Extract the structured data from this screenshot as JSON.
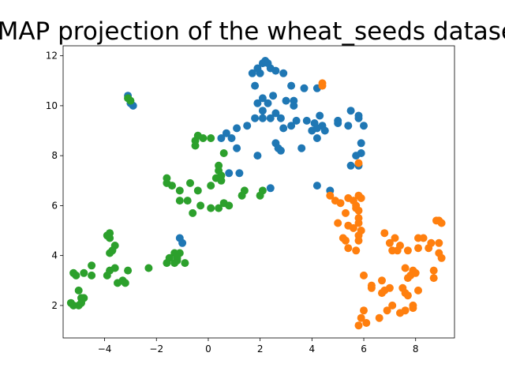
{
  "chart_data": {
    "type": "scatter",
    "title": "UMAP projection of the wheat_seeds dataset",
    "xlabel": "",
    "ylabel": "",
    "xlim": [
      -5.6,
      9.5
    ],
    "ylim": [
      0.7,
      12.4
    ],
    "xticks": [
      -4,
      -2,
      0,
      2,
      4,
      6,
      8
    ],
    "yticks": [
      2,
      4,
      6,
      8,
      10,
      12
    ],
    "grid": false,
    "legend": "none",
    "series": [
      {
        "color": "#1f77b4",
        "points": [
          [
            2.1,
            11.7
          ],
          [
            2.2,
            11.8
          ],
          [
            2.3,
            11.7
          ],
          [
            2.4,
            11.5
          ],
          [
            1.9,
            11.5
          ],
          [
            2.6,
            11.4
          ],
          [
            2.0,
            11.3
          ],
          [
            1.7,
            11.3
          ],
          [
            2.9,
            11.3
          ],
          [
            1.8,
            10.8
          ],
          [
            3.2,
            10.8
          ],
          [
            3.7,
            10.7
          ],
          [
            4.2,
            10.7
          ],
          [
            2.5,
            10.4
          ],
          [
            2.1,
            10.3
          ],
          [
            3.0,
            10.2
          ],
          [
            3.3,
            10.2
          ],
          [
            1.9,
            10.1
          ],
          [
            2.3,
            10.1
          ],
          [
            3.3,
            10.0
          ],
          [
            2.1,
            9.8
          ],
          [
            2.6,
            9.7
          ],
          [
            5.5,
            9.8
          ],
          [
            4.3,
            9.6
          ],
          [
            1.8,
            9.5
          ],
          [
            2.1,
            9.5
          ],
          [
            2.4,
            9.5
          ],
          [
            2.8,
            9.5
          ],
          [
            3.4,
            9.4
          ],
          [
            3.8,
            9.4
          ],
          [
            5.0,
            9.4
          ],
          [
            5.8,
            9.5
          ],
          [
            5.8,
            9.6
          ],
          [
            4.1,
            9.3
          ],
          [
            4.4,
            9.2
          ],
          [
            5.0,
            9.3
          ],
          [
            5.4,
            9.2
          ],
          [
            3.2,
            9.2
          ],
          [
            1.5,
            9.2
          ],
          [
            2.9,
            9.1
          ],
          [
            1.1,
            9.1
          ],
          [
            4.2,
            9.1
          ],
          [
            4.0,
            9.0
          ],
          [
            6.0,
            9.2
          ],
          [
            4.5,
            9.0
          ],
          [
            0.7,
            8.9
          ],
          [
            0.5,
            8.7
          ],
          [
            0.9,
            8.7
          ],
          [
            4.2,
            8.7
          ],
          [
            5.9,
            8.5
          ],
          [
            2.6,
            8.5
          ],
          [
            2.7,
            8.3
          ],
          [
            3.6,
            8.3
          ],
          [
            1.1,
            8.3
          ],
          [
            2.8,
            8.2
          ],
          [
            5.9,
            8.1
          ],
          [
            5.7,
            8.0
          ],
          [
            1.9,
            8.0
          ],
          [
            5.5,
            7.6
          ],
          [
            5.8,
            7.6
          ],
          [
            0.8,
            7.3
          ],
          [
            1.2,
            7.3
          ],
          [
            4.2,
            6.8
          ],
          [
            2.4,
            6.7
          ],
          [
            4.7,
            6.6
          ],
          [
            -1.1,
            4.7
          ],
          [
            -1.0,
            4.5
          ],
          [
            -3.1,
            10.4
          ],
          [
            -3.0,
            10.1
          ],
          [
            -2.9,
            10.0
          ]
        ]
      },
      {
        "color": "#ff7f0e",
        "points": [
          [
            4.4,
            10.9
          ],
          [
            4.4,
            10.8
          ],
          [
            5.8,
            7.7
          ],
          [
            4.7,
            6.4
          ],
          [
            5.4,
            6.3
          ],
          [
            5.8,
            6.4
          ],
          [
            5.9,
            6.3
          ],
          [
            4.9,
            6.2
          ],
          [
            5.6,
            6.2
          ],
          [
            5.1,
            6.1
          ],
          [
            5.7,
            6.0
          ],
          [
            5.7,
            5.9
          ],
          [
            5.8,
            5.8
          ],
          [
            5.3,
            5.7
          ],
          [
            5.8,
            5.5
          ],
          [
            5.8,
            5.3
          ],
          [
            5.0,
            5.3
          ],
          [
            5.4,
            5.2
          ],
          [
            5.6,
            5.1
          ],
          [
            5.9,
            5.0
          ],
          [
            5.8,
            4.8
          ],
          [
            5.8,
            4.6
          ],
          [
            5.2,
            4.7
          ],
          [
            5.3,
            4.6
          ],
          [
            5.4,
            4.3
          ],
          [
            5.7,
            4.2
          ],
          [
            6.8,
            4.9
          ],
          [
            7.2,
            4.7
          ],
          [
            7.0,
            4.5
          ],
          [
            8.8,
            5.4
          ],
          [
            8.9,
            5.4
          ],
          [
            9.0,
            5.3
          ],
          [
            8.1,
            4.7
          ],
          [
            8.3,
            4.7
          ],
          [
            8.6,
            4.5
          ],
          [
            8.9,
            4.5
          ],
          [
            7.3,
            4.2
          ],
          [
            7.1,
            4.2
          ],
          [
            7.4,
            4.4
          ],
          [
            7.7,
            4.2
          ],
          [
            8.1,
            4.3
          ],
          [
            8.5,
            4.3
          ],
          [
            8.9,
            4.1
          ],
          [
            9.0,
            3.9
          ],
          [
            6.0,
            3.2
          ],
          [
            7.6,
            3.5
          ],
          [
            7.9,
            3.4
          ],
          [
            7.7,
            3.1
          ],
          [
            7.8,
            3.2
          ],
          [
            8.0,
            3.3
          ],
          [
            8.7,
            3.4
          ],
          [
            8.7,
            3.1
          ],
          [
            6.7,
            3.0
          ],
          [
            6.3,
            2.7
          ],
          [
            6.3,
            2.8
          ],
          [
            6.8,
            2.6
          ],
          [
            7.0,
            2.7
          ],
          [
            7.5,
            2.7
          ],
          [
            7.6,
            2.5
          ],
          [
            7.7,
            2.4
          ],
          [
            6.7,
            2.5
          ],
          [
            7.1,
            2.0
          ],
          [
            7.6,
            1.8
          ],
          [
            7.9,
            1.9
          ],
          [
            6.9,
            1.8
          ],
          [
            7.9,
            2.0
          ],
          [
            8.1,
            2.6
          ],
          [
            6.0,
            1.8
          ],
          [
            5.9,
            1.5
          ],
          [
            6.1,
            1.3
          ],
          [
            5.8,
            1.2
          ],
          [
            6.6,
            1.5
          ],
          [
            7.4,
            1.7
          ]
        ]
      },
      {
        "color": "#2ca02c",
        "points": [
          [
            -3.1,
            10.3
          ],
          [
            -3.0,
            10.2
          ],
          [
            -0.4,
            8.8
          ],
          [
            -0.2,
            8.7
          ],
          [
            0.1,
            8.7
          ],
          [
            -0.5,
            8.6
          ],
          [
            -0.5,
            8.4
          ],
          [
            0.6,
            8.1
          ],
          [
            -1.6,
            7.1
          ],
          [
            -1.6,
            6.9
          ],
          [
            -1.4,
            6.8
          ],
          [
            -0.7,
            6.9
          ],
          [
            0.4,
            7.6
          ],
          [
            0.4,
            7.4
          ],
          [
            0.5,
            7.2
          ],
          [
            0.3,
            7.1
          ],
          [
            0.5,
            7.0
          ],
          [
            0.1,
            6.8
          ],
          [
            -1.1,
            6.6
          ],
          [
            -0.4,
            6.6
          ],
          [
            1.4,
            6.6
          ],
          [
            1.3,
            6.4
          ],
          [
            2.1,
            6.6
          ],
          [
            2.0,
            6.4
          ],
          [
            -0.8,
            6.2
          ],
          [
            -1.1,
            6.2
          ],
          [
            0.6,
            6.1
          ],
          [
            0.8,
            6.0
          ],
          [
            0.4,
            5.9
          ],
          [
            0.1,
            5.9
          ],
          [
            -0.3,
            6.0
          ],
          [
            -0.6,
            5.7
          ],
          [
            -3.8,
            4.9
          ],
          [
            -3.9,
            4.8
          ],
          [
            -3.8,
            4.7
          ],
          [
            -3.6,
            4.4
          ],
          [
            -3.7,
            4.2
          ],
          [
            -3.8,
            4.1
          ],
          [
            -1.1,
            4.1
          ],
          [
            -1.3,
            4.1
          ],
          [
            -1.2,
            3.9
          ],
          [
            -1.5,
            3.9
          ],
          [
            -1.2,
            3.8
          ],
          [
            -1.6,
            3.7
          ],
          [
            -1.3,
            3.7
          ],
          [
            -0.9,
            3.7
          ],
          [
            -4.5,
            3.6
          ],
          [
            -3.6,
            3.5
          ],
          [
            -3.1,
            3.4
          ],
          [
            -2.3,
            3.5
          ],
          [
            -5.2,
            3.3
          ],
          [
            -5.1,
            3.2
          ],
          [
            -4.8,
            3.3
          ],
          [
            -4.5,
            3.2
          ],
          [
            -3.8,
            3.4
          ],
          [
            -3.9,
            3.2
          ],
          [
            -3.5,
            2.9
          ],
          [
            -3.3,
            3.0
          ],
          [
            -3.2,
            2.9
          ],
          [
            -5.0,
            2.6
          ],
          [
            -4.9,
            2.3
          ],
          [
            -4.8,
            2.3
          ],
          [
            -5.3,
            2.1
          ],
          [
            -5.2,
            2.0
          ],
          [
            -5.0,
            2.0
          ],
          [
            -4.9,
            2.1
          ]
        ]
      }
    ]
  }
}
